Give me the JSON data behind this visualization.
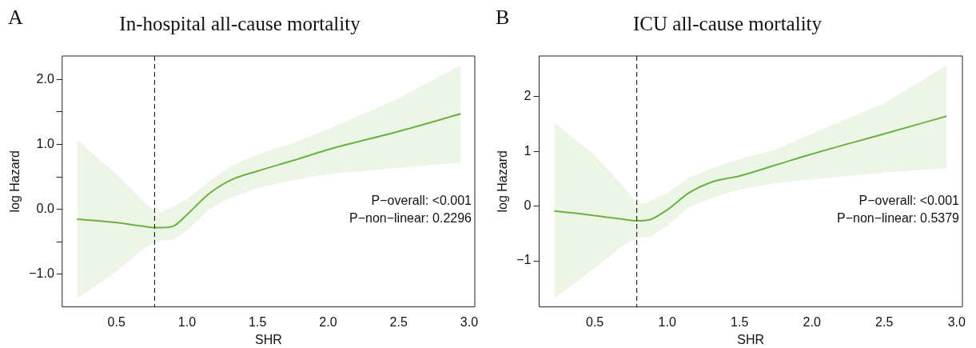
{
  "chart_data": [
    {
      "type": "line",
      "title": "In-hospital all-cause mortality",
      "xlabel": "SHR",
      "ylabel": "log Hazard",
      "annotations": [
        "A",
        "P−overall: <0.001",
        "P−non−linear: 0.2296"
      ],
      "x": [
        0.22,
        0.49,
        0.69,
        0.77,
        0.82,
        0.91,
        1.0,
        1.15,
        1.31,
        1.5,
        1.75,
        2.0,
        2.5,
        2.94
      ],
      "series": [
        {
          "color": "#6cb33f",
          "values": [
            -0.15,
            -0.2,
            -0.26,
            -0.28,
            -0.28,
            -0.25,
            -0.08,
            0.23,
            0.45,
            0.59,
            0.75,
            0.92,
            1.2,
            1.47
          ],
          "upper": [
            1.07,
            0.56,
            0.13,
            -0.03,
            -0.04,
            0.05,
            0.16,
            0.42,
            0.66,
            0.85,
            1.02,
            1.23,
            1.71,
            2.22
          ],
          "lower": [
            -1.37,
            -0.97,
            -0.61,
            -0.51,
            -0.48,
            -0.46,
            -0.32,
            -0.01,
            0.18,
            0.33,
            0.45,
            0.54,
            0.64,
            0.72
          ]
        }
      ],
      "xlim": [
        0.115,
        3.04
      ],
      "ylim": [
        -1.5,
        2.36
      ],
      "xticks": [
        0.5,
        {
          "value": 1,
          "label": "1.0"
        },
        1.5,
        {
          "value": 2,
          "label": "2.0"
        },
        2.5,
        {
          "value": 3,
          "label": "3.0"
        }
      ],
      "yticks": [
        {
          "value": -1,
          "label": "−1.0"
        },
        {
          "value": -0.5,
          "label": null
        },
        {
          "value": 0,
          "label": "0.0"
        },
        {
          "value": 0.5,
          "label": null
        },
        {
          "value": 1,
          "label": "1.0"
        },
        {
          "value": 1.5,
          "label": null
        },
        {
          "value": 2,
          "label": "2.0"
        }
      ],
      "ref_lines": [
        {
          "axis": "x",
          "value": 0.77,
          "color": "#000000",
          "line_style": "dashed"
        }
      ],
      "grid": false,
      "legend": false,
      "marker": "none",
      "line_style": "solid"
    },
    {
      "type": "line",
      "title": "ICU all-cause mortality",
      "xlabel": "SHR",
      "ylabel": "log Hazard",
      "annotations": [
        "B",
        "P−overall: <0.001",
        "P−non−linear: 0.5379"
      ],
      "x": [
        0.22,
        0.49,
        0.69,
        0.79,
        0.85,
        0.89,
        1.0,
        1.15,
        1.31,
        1.5,
        1.75,
        2.0,
        2.5,
        2.93
      ],
      "series": [
        {
          "color": "#6cb33f",
          "values": [
            -0.09,
            -0.17,
            -0.24,
            -0.27,
            -0.26,
            -0.24,
            -0.07,
            0.24,
            0.44,
            0.55,
            0.75,
            0.95,
            1.32,
            1.64
          ],
          "upper": [
            1.52,
            0.95,
            0.38,
            0.05,
            0.04,
            0.1,
            0.24,
            0.52,
            0.69,
            0.86,
            1.03,
            1.32,
            1.88,
            2.57
          ],
          "lower": [
            -1.68,
            -1.15,
            -0.73,
            -0.59,
            -0.57,
            -0.56,
            -0.36,
            -0.02,
            0.15,
            0.3,
            0.42,
            0.49,
            0.61,
            0.69
          ]
        }
      ],
      "xlim": [
        0.115,
        3.04
      ],
      "ylim": [
        -1.84,
        2.74
      ],
      "xticks": [
        0.5,
        {
          "value": 1,
          "label": "1.0"
        },
        1.5,
        {
          "value": 2,
          "label": "2.0"
        },
        2.5,
        {
          "value": 3,
          "label": "3.0"
        }
      ],
      "yticks": [
        {
          "value": -1,
          "label": "−1"
        },
        0,
        1,
        2
      ],
      "ref_lines": [
        {
          "axis": "x",
          "value": 0.79,
          "color": "#000000",
          "line_style": "dashed"
        }
      ],
      "grid": false,
      "legend": false,
      "marker": "none",
      "line_style": "solid"
    }
  ]
}
